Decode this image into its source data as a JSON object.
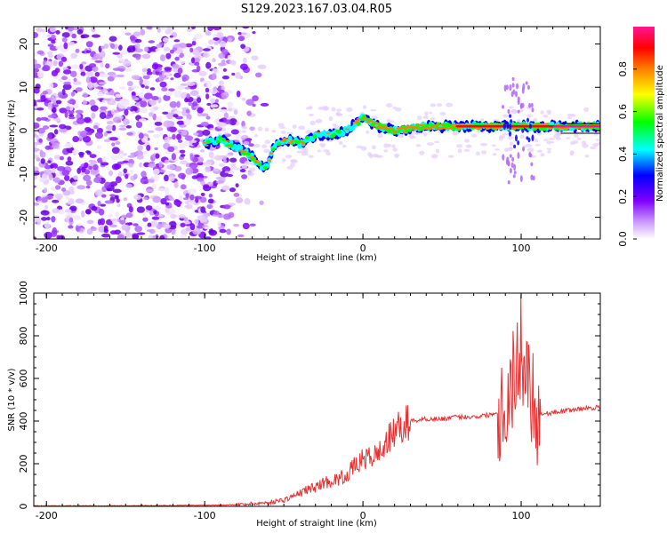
{
  "title": "S129.2023.167.03.04.R05",
  "chart_data": [
    {
      "type": "heatmap",
      "xlabel": "Height of straight line (km)",
      "ylabel": "Frequency (Hz)",
      "xlim": [
        -208,
        150
      ],
      "ylim": [
        -25,
        24
      ],
      "xticks": [
        -200,
        -100,
        0,
        100
      ],
      "yticks": [
        -20,
        -10,
        0,
        10,
        20
      ],
      "colorbar": {
        "label": "Normalized spectral amplitude",
        "range": [
          0.0,
          1.0
        ],
        "ticks": [
          0.0,
          0.2,
          0.4,
          0.6,
          0.8
        ],
        "tick_labels": [
          "0.0",
          "0.2",
          "0.4",
          "0.6",
          "0.8"
        ],
        "colormap": [
          "#ffffff",
          "#cc99ff",
          "#7f00ff",
          "#0000ff",
          "#00ffff",
          "#00ff00",
          "#ffff00",
          "#ff8000",
          "#ff0000",
          "#ff1493"
        ]
      },
      "track": [
        {
          "x": -100,
          "y": -3
        },
        {
          "x": -90,
          "y": -2
        },
        {
          "x": -80,
          "y": -4
        },
        {
          "x": -70,
          "y": -6
        },
        {
          "x": -62,
          "y": -9
        },
        {
          "x": -55,
          "y": -3
        },
        {
          "x": -48,
          "y": -2
        },
        {
          "x": -40,
          "y": -3
        },
        {
          "x": -30,
          "y": -1
        },
        {
          "x": -20,
          "y": -1
        },
        {
          "x": -10,
          "y": 0
        },
        {
          "x": 0,
          "y": 3
        },
        {
          "x": 10,
          "y": 1
        },
        {
          "x": 20,
          "y": 0
        },
        {
          "x": 40,
          "y": 1
        },
        {
          "x": 60,
          "y": 1
        },
        {
          "x": 80,
          "y": 1
        },
        {
          "x": 100,
          "y": 1
        },
        {
          "x": 120,
          "y": 1
        },
        {
          "x": 150,
          "y": 1
        }
      ]
    },
    {
      "type": "line",
      "xlabel": "Height of straight line (km)",
      "ylabel": "SNR (10 * v/v)",
      "xlim": [
        -208,
        150
      ],
      "ylim": [
        0,
        1000
      ],
      "xticks": [
        -200,
        -100,
        0,
        100
      ],
      "yticks": [
        0,
        200,
        400,
        600,
        800,
        1000
      ],
      "color": "#e83030",
      "series": [
        {
          "x": [
            -208,
            -150,
            -100,
            -80,
            -70,
            -60,
            -50,
            -45,
            -40,
            -35,
            -30,
            -25,
            -20,
            -15,
            -10,
            -5,
            0,
            5,
            10,
            15,
            20,
            25,
            30,
            40,
            50,
            60,
            70,
            80,
            85,
            90,
            95,
            100,
            105,
            110,
            120,
            130,
            140,
            150
          ],
          "values": [
            2,
            3,
            5,
            8,
            12,
            18,
            30,
            45,
            60,
            80,
            90,
            110,
            120,
            130,
            150,
            190,
            220,
            230,
            250,
            300,
            350,
            380,
            400,
            410,
            410,
            420,
            420,
            430,
            440,
            480,
            600,
            750,
            600,
            430,
            440,
            450,
            460,
            465
          ]
        }
      ]
    }
  ]
}
